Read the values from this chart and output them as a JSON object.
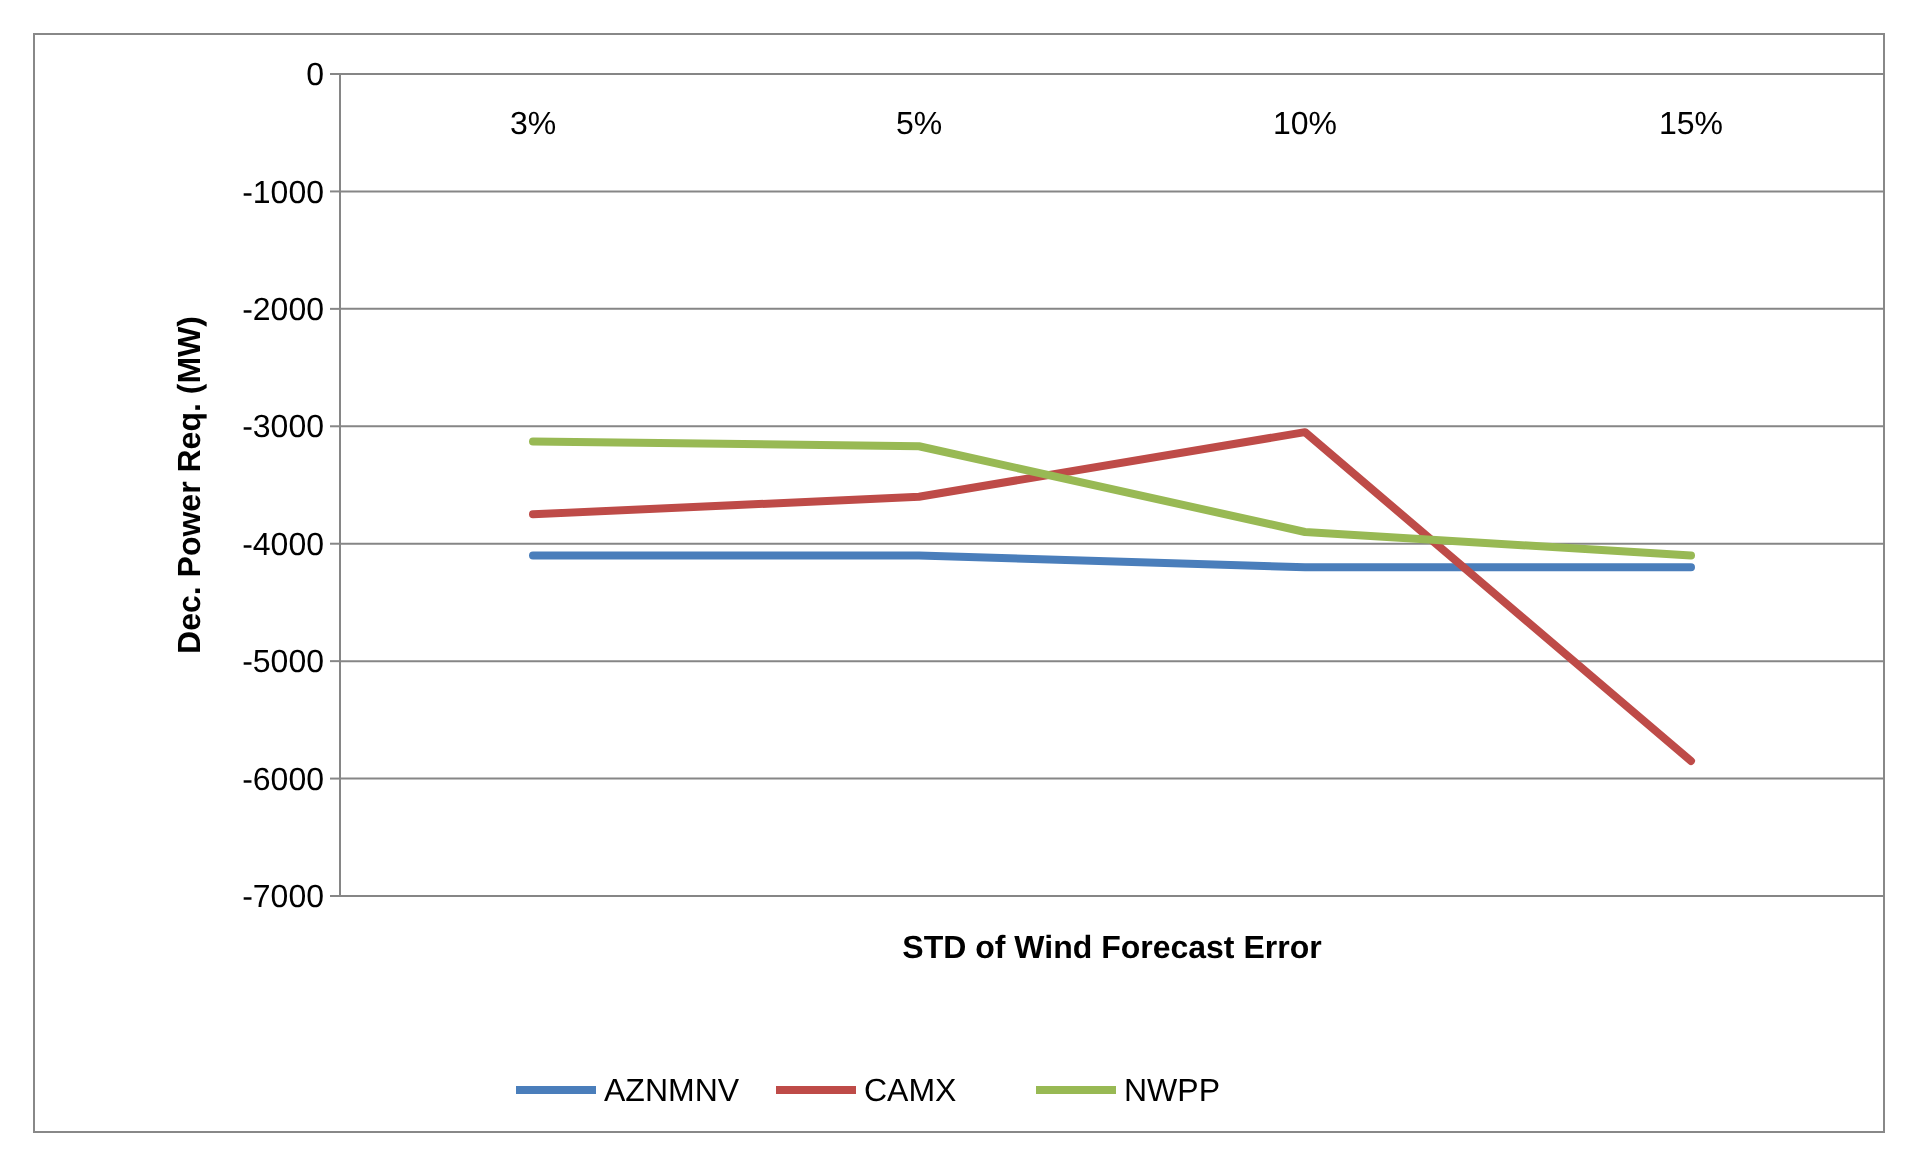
{
  "chart_data": {
    "type": "line",
    "xlabel": "STD of Wind Forecast Error",
    "ylabel": "Dec. Power Req. (MW)",
    "categories": [
      "3%",
      "5%",
      "10%",
      "15%"
    ],
    "series": [
      {
        "name": "AZNMNV",
        "color": "#4a7ebb",
        "values": [
          -4100,
          -4100,
          -4200,
          -4200
        ]
      },
      {
        "name": "CAMX",
        "color": "#be4b48",
        "values": [
          -3750,
          -3600,
          -3050,
          -5850
        ]
      },
      {
        "name": "NWPP",
        "color": "#98b954",
        "values": [
          -3130,
          -3170,
          -3900,
          -4100
        ]
      }
    ],
    "ylim": [
      -7000,
      0
    ],
    "yticks": [
      -7000,
      -6000,
      -5000,
      -4000,
      -3000,
      -2000,
      -1000,
      0
    ],
    "grid": "y",
    "legend": "bottom",
    "marker": "none",
    "line_style": "solid"
  }
}
